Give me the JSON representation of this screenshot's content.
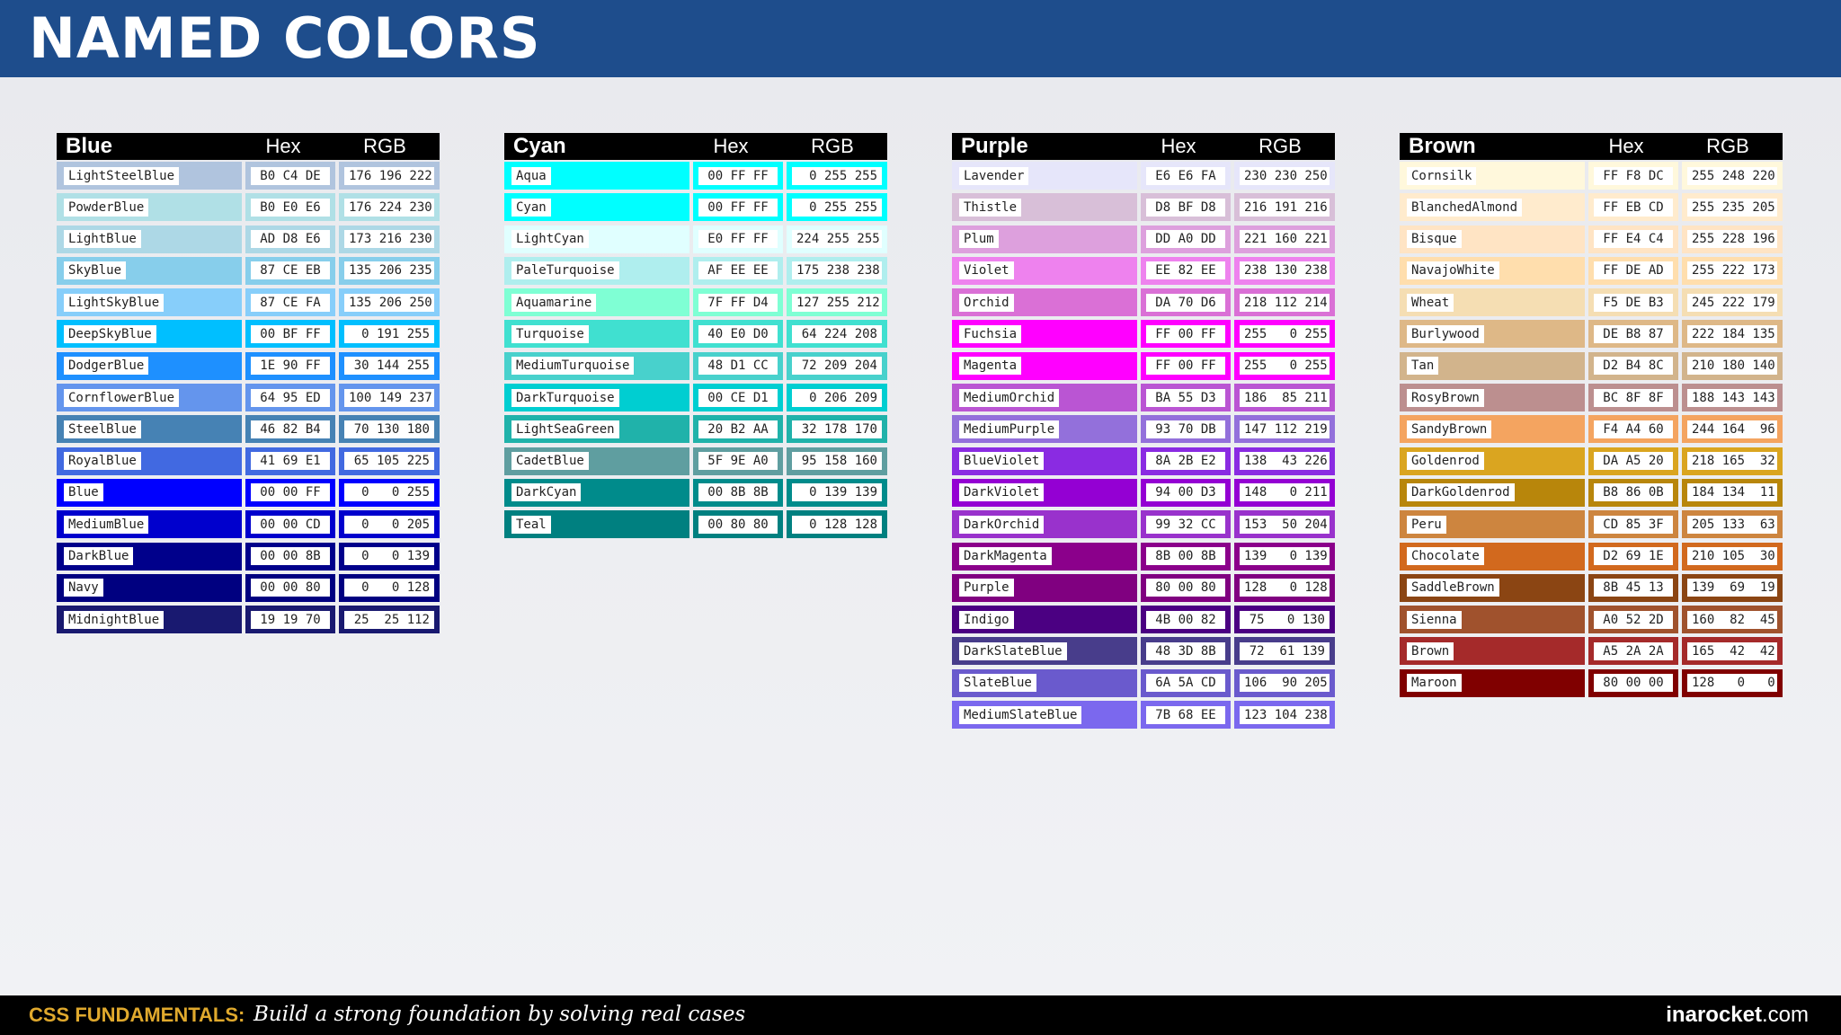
{
  "header": {
    "title": "NAMED COLORS"
  },
  "footer": {
    "brand": "CSS FUNDAMENTALS:",
    "tagline": "Build a strong foundation by solving real cases",
    "site_name": "inarocket",
    "site_domain": ".com"
  },
  "columns": {
    "hex": "Hex",
    "rgb": "RGB"
  },
  "groups": [
    {
      "name": "Blue",
      "colors": [
        {
          "name": "LightSteelBlue",
          "hex": "B0 C4 DE",
          "rgb": "176 196 222",
          "color": "#B0C4DE"
        },
        {
          "name": "PowderBlue",
          "hex": "B0 E0 E6",
          "rgb": "176 224 230",
          "color": "#B0E0E6"
        },
        {
          "name": "LightBlue",
          "hex": "AD D8 E6",
          "rgb": "173 216 230",
          "color": "#ADD8E6"
        },
        {
          "name": "SkyBlue",
          "hex": "87 CE EB",
          "rgb": "135 206 235",
          "color": "#87CEEB"
        },
        {
          "name": "LightSkyBlue",
          "hex": "87 CE FA",
          "rgb": "135 206 250",
          "color": "#87CEFA"
        },
        {
          "name": "DeepSkyBlue",
          "hex": "00 BF FF",
          "rgb": "0 191 255",
          "color": "#00BFFF"
        },
        {
          "name": "DodgerBlue",
          "hex": "1E 90 FF",
          "rgb": "30 144 255",
          "color": "#1E90FF"
        },
        {
          "name": "CornflowerBlue",
          "hex": "64 95 ED",
          "rgb": "100 149 237",
          "color": "#6495ED"
        },
        {
          "name": "SteelBlue",
          "hex": "46 82 B4",
          "rgb": "70 130 180",
          "color": "#4682B4"
        },
        {
          "name": "RoyalBlue",
          "hex": "41 69 E1",
          "rgb": "65 105 225",
          "color": "#4169E1"
        },
        {
          "name": "Blue",
          "hex": "00 00 FF",
          "rgb": "0   0 255",
          "color": "#0000FF"
        },
        {
          "name": "MediumBlue",
          "hex": "00 00 CD",
          "rgb": "0   0 205",
          "color": "#0000CD"
        },
        {
          "name": "DarkBlue",
          "hex": "00 00 8B",
          "rgb": "0   0 139",
          "color": "#00008B"
        },
        {
          "name": "Navy",
          "hex": "00 00 80",
          "rgb": "0   0 128",
          "color": "#000080"
        },
        {
          "name": "MidnightBlue",
          "hex": "19 19 70",
          "rgb": "25  25 112",
          "color": "#191970"
        }
      ]
    },
    {
      "name": "Cyan",
      "colors": [
        {
          "name": "Aqua",
          "hex": "00 FF FF",
          "rgb": "0 255 255",
          "color": "#00FFFF"
        },
        {
          "name": "Cyan",
          "hex": "00 FF FF",
          "rgb": "0 255 255",
          "color": "#00FFFF"
        },
        {
          "name": "LightCyan",
          "hex": "E0 FF FF",
          "rgb": "224 255 255",
          "color": "#E0FFFF"
        },
        {
          "name": "PaleTurquoise",
          "hex": "AF EE EE",
          "rgb": "175 238 238",
          "color": "#AFEEEE"
        },
        {
          "name": "Aquamarine",
          "hex": "7F FF D4",
          "rgb": "127 255 212",
          "color": "#7FFFD4"
        },
        {
          "name": "Turquoise",
          "hex": "40 E0 D0",
          "rgb": "64 224 208",
          "color": "#40E0D0"
        },
        {
          "name": "MediumTurquoise",
          "hex": "48 D1 CC",
          "rgb": "72 209 204",
          "color": "#48D1CC"
        },
        {
          "name": "DarkTurquoise",
          "hex": "00 CE D1",
          "rgb": "0 206 209",
          "color": "#00CED1"
        },
        {
          "name": "LightSeaGreen",
          "hex": "20 B2 AA",
          "rgb": "32 178 170",
          "color": "#20B2AA"
        },
        {
          "name": "CadetBlue",
          "hex": "5F 9E A0",
          "rgb": "95 158 160",
          "color": "#5F9EA0"
        },
        {
          "name": "DarkCyan",
          "hex": "00 8B 8B",
          "rgb": "0 139 139",
          "color": "#008B8B"
        },
        {
          "name": "Teal",
          "hex": "00 80 80",
          "rgb": "0 128 128",
          "color": "#008080"
        }
      ]
    },
    {
      "name": "Purple",
      "colors": [
        {
          "name": "Lavender",
          "hex": "E6 E6 FA",
          "rgb": "230 230 250",
          "color": "#E6E6FA"
        },
        {
          "name": "Thistle",
          "hex": "D8 BF D8",
          "rgb": "216 191 216",
          "color": "#D8BFD8"
        },
        {
          "name": "Plum",
          "hex": "DD A0 DD",
          "rgb": "221 160 221",
          "color": "#DDA0DD"
        },
        {
          "name": "Violet",
          "hex": "EE 82 EE",
          "rgb": "238 130 238",
          "color": "#EE82EE"
        },
        {
          "name": "Orchid",
          "hex": "DA 70 D6",
          "rgb": "218 112 214",
          "color": "#DA70D6"
        },
        {
          "name": "Fuchsia",
          "hex": "FF 00 FF",
          "rgb": "255   0 255",
          "color": "#FF00FF"
        },
        {
          "name": "Magenta",
          "hex": "FF 00 FF",
          "rgb": "255   0 255",
          "color": "#FF00FF"
        },
        {
          "name": "MediumOrchid",
          "hex": "BA 55 D3",
          "rgb": "186  85 211",
          "color": "#BA55D3"
        },
        {
          "name": "MediumPurple",
          "hex": "93 70 DB",
          "rgb": "147 112 219",
          "color": "#9370DB"
        },
        {
          "name": "BlueViolet",
          "hex": "8A 2B E2",
          "rgb": "138  43 226",
          "color": "#8A2BE2"
        },
        {
          "name": "DarkViolet",
          "hex": "94 00 D3",
          "rgb": "148   0 211",
          "color": "#9400D3"
        },
        {
          "name": "DarkOrchid",
          "hex": "99 32 CC",
          "rgb": "153  50 204",
          "color": "#9932CC"
        },
        {
          "name": "DarkMagenta",
          "hex": "8B 00 8B",
          "rgb": "139   0 139",
          "color": "#8B008B"
        },
        {
          "name": "Purple",
          "hex": "80 00 80",
          "rgb": "128   0 128",
          "color": "#800080"
        },
        {
          "name": "Indigo",
          "hex": "4B 00 82",
          "rgb": "75   0 130",
          "color": "#4B0082"
        },
        {
          "name": "DarkSlateBlue",
          "hex": "48 3D 8B",
          "rgb": "72  61 139",
          "color": "#483D8B"
        },
        {
          "name": "SlateBlue",
          "hex": "6A 5A CD",
          "rgb": "106  90 205",
          "color": "#6A5ACD"
        },
        {
          "name": "MediumSlateBlue",
          "hex": "7B 68 EE",
          "rgb": "123 104 238",
          "color": "#7B68EE"
        }
      ]
    },
    {
      "name": "Brown",
      "colors": [
        {
          "name": "Cornsilk",
          "hex": "FF F8 DC",
          "rgb": "255 248 220",
          "color": "#FFF8DC"
        },
        {
          "name": "BlanchedAlmond",
          "hex": "FF EB CD",
          "rgb": "255 235 205",
          "color": "#FFEBCD"
        },
        {
          "name": "Bisque",
          "hex": "FF E4 C4",
          "rgb": "255 228 196",
          "color": "#FFE4C4"
        },
        {
          "name": "NavajoWhite",
          "hex": "FF DE AD",
          "rgb": "255 222 173",
          "color": "#FFDEAD"
        },
        {
          "name": "Wheat",
          "hex": "F5 DE B3",
          "rgb": "245 222 179",
          "color": "#F5DEB3"
        },
        {
          "name": "Burlywood",
          "hex": "DE B8 87",
          "rgb": "222 184 135",
          "color": "#DEB887"
        },
        {
          "name": "Tan",
          "hex": "D2 B4 8C",
          "rgb": "210 180 140",
          "color": "#D2B48C"
        },
        {
          "name": "RosyBrown",
          "hex": "BC 8F 8F",
          "rgb": "188 143 143",
          "color": "#BC8F8F"
        },
        {
          "name": "SandyBrown",
          "hex": "F4 A4 60",
          "rgb": "244 164  96",
          "color": "#F4A460"
        },
        {
          "name": "Goldenrod",
          "hex": "DA A5 20",
          "rgb": "218 165  32",
          "color": "#DAA520"
        },
        {
          "name": "DarkGoldenrod",
          "hex": "B8 86 0B",
          "rgb": "184 134  11",
          "color": "#B8860B"
        },
        {
          "name": "Peru",
          "hex": "CD 85 3F",
          "rgb": "205 133  63",
          "color": "#CD853F"
        },
        {
          "name": "Chocolate",
          "hex": "D2 69 1E",
          "rgb": "210 105  30",
          "color": "#D2691E"
        },
        {
          "name": "SaddleBrown",
          "hex": "8B 45 13",
          "rgb": "139  69  19",
          "color": "#8B4513"
        },
        {
          "name": "Sienna",
          "hex": "A0 52 2D",
          "rgb": "160  82  45",
          "color": "#A0522D"
        },
        {
          "name": "Brown",
          "hex": "A5 2A 2A",
          "rgb": "165  42  42",
          "color": "#A52A2A"
        },
        {
          "name": "Maroon",
          "hex": "80 00 00",
          "rgb": "128   0   0",
          "color": "#800000"
        }
      ]
    }
  ]
}
